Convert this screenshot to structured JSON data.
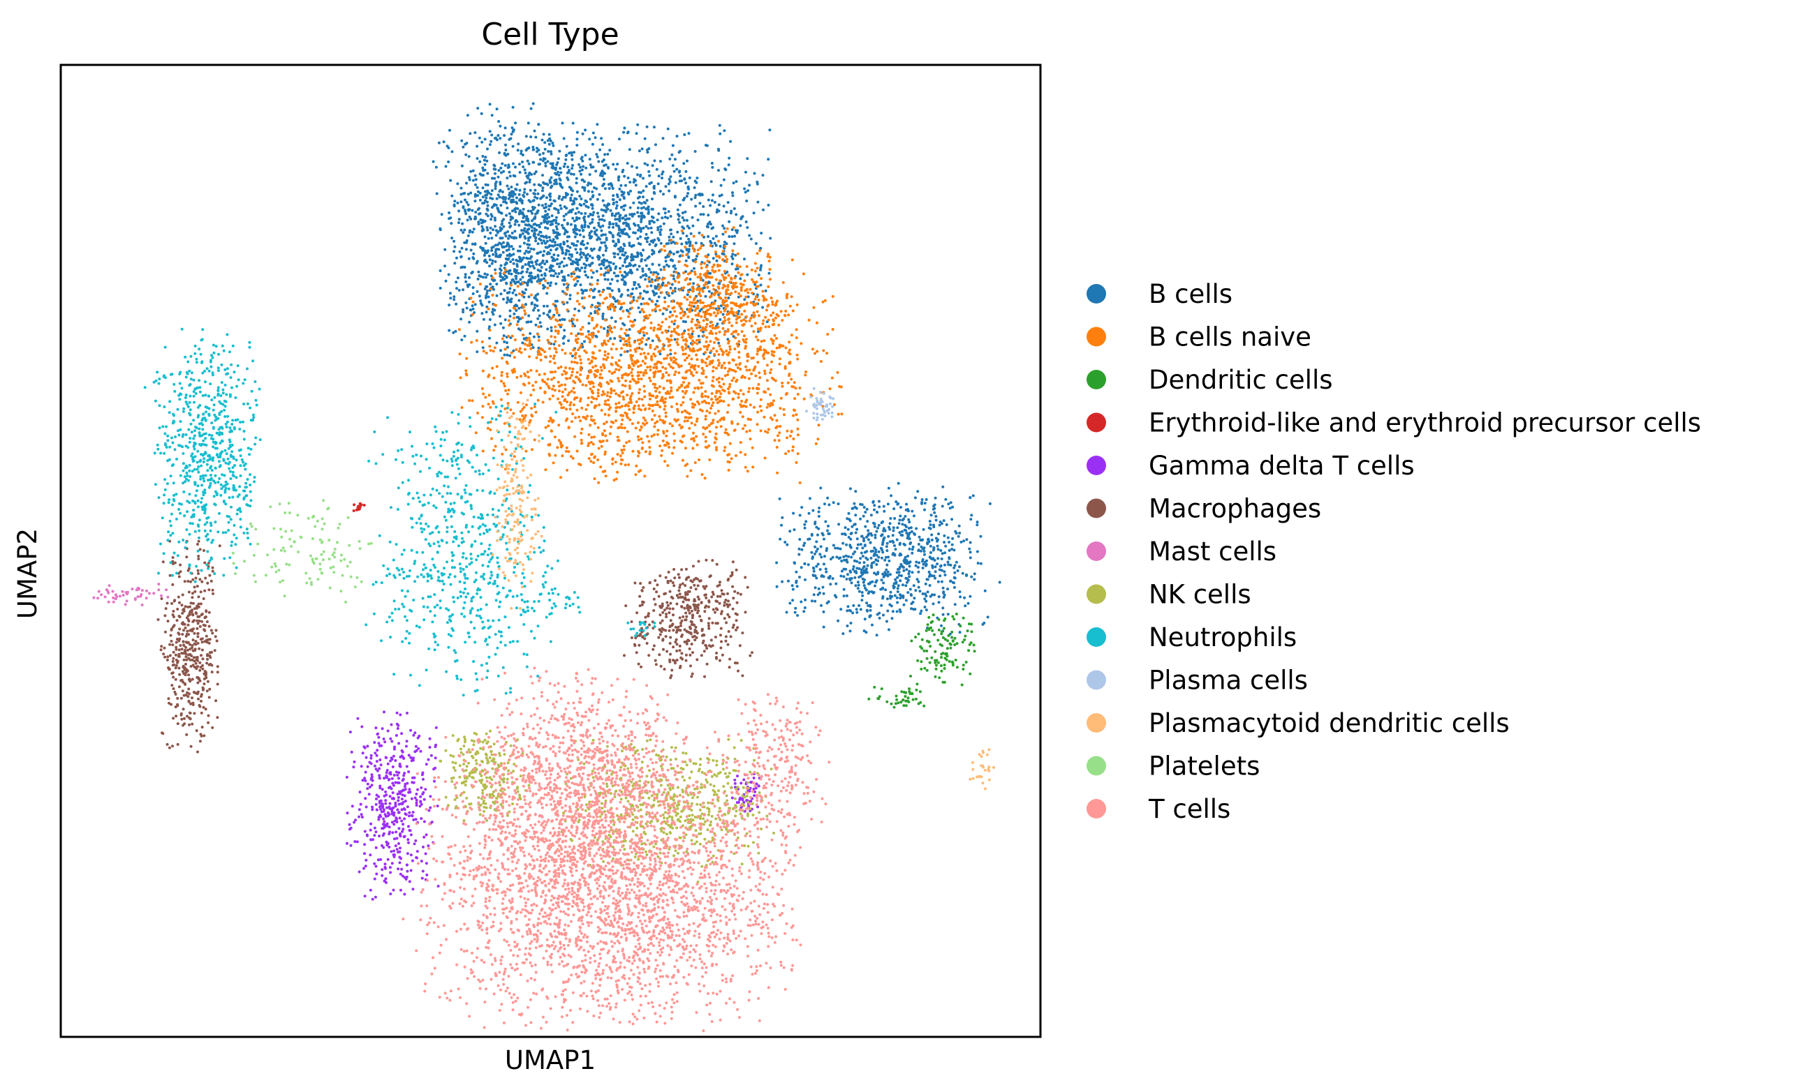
{
  "chart_data": {
    "type": "scatter",
    "title": "Cell Type",
    "xlabel": "UMAP1",
    "ylabel": "UMAP2",
    "xlim": [
      0,
      100
    ],
    "ylim": [
      0,
      100
    ],
    "grid": false,
    "ticks": "none",
    "legend_position": "right",
    "series": [
      {
        "name": "B cells",
        "color": "#1f77b4",
        "clusters": [
          {
            "x": 56,
            "y": 82,
            "sx": 7.5,
            "sy": 5.5,
            "n": 1800
          },
          {
            "x": 46,
            "y": 83,
            "sx": 3.5,
            "sy": 6,
            "n": 700
          },
          {
            "x": 84,
            "y": 49,
            "sx": 5,
            "sy": 3.5,
            "n": 800
          }
        ]
      },
      {
        "name": "B cells naive",
        "color": "#ff7f0e",
        "clusters": [
          {
            "x": 60,
            "y": 68,
            "sx": 9,
            "sy": 5,
            "n": 1700
          },
          {
            "x": 67,
            "y": 76,
            "sx": 3.5,
            "sy": 3.5,
            "n": 400
          }
        ]
      },
      {
        "name": "Dendritic cells",
        "color": "#2ca02c",
        "clusters": [
          {
            "x": 90,
            "y": 40,
            "sx": 1.6,
            "sy": 1.8,
            "n": 110
          },
          {
            "x": 86,
            "y": 35,
            "sx": 1.6,
            "sy": 0.6,
            "n": 40
          }
        ]
      },
      {
        "name": "Erythroid-like and erythroid precursor cells",
        "color": "#d62728",
        "clusters": [
          {
            "x": 30.3,
            "y": 54.5,
            "sx": 0.35,
            "sy": 0.3,
            "n": 14
          }
        ]
      },
      {
        "name": "Gamma delta T cells",
        "color": "#9b30f5",
        "clusters": [
          {
            "x": 34,
            "y": 24,
            "sx": 2.2,
            "sy": 4.5,
            "n": 450
          },
          {
            "x": 70,
            "y": 25,
            "sx": 0.8,
            "sy": 1.2,
            "n": 60
          }
        ]
      },
      {
        "name": "Macrophages",
        "color": "#8c564b",
        "clusters": [
          {
            "x": 13,
            "y": 40,
            "sx": 1.4,
            "sy": 5,
            "n": 420
          },
          {
            "x": 64,
            "y": 43,
            "sx": 3,
            "sy": 2.8,
            "n": 400
          }
        ]
      },
      {
        "name": "Mast cells",
        "color": "#e377c2",
        "clusters": [
          {
            "x": 7,
            "y": 45.5,
            "sx": 2,
            "sy": 0.5,
            "n": 45
          }
        ]
      },
      {
        "name": "NK cells",
        "color": "#b5bd4d",
        "clusters": [
          {
            "x": 62,
            "y": 24,
            "sx": 5,
            "sy": 3,
            "n": 550
          },
          {
            "x": 43,
            "y": 27,
            "sx": 2.2,
            "sy": 2.2,
            "n": 220
          }
        ]
      },
      {
        "name": "Neutrophils",
        "color": "#17becf",
        "clusters": [
          {
            "x": 15,
            "y": 60,
            "sx": 2.5,
            "sy": 6,
            "n": 650
          },
          {
            "x": 41,
            "y": 50,
            "sx": 4.5,
            "sy": 7,
            "n": 600
          },
          {
            "x": 50,
            "y": 45,
            "sx": 2,
            "sy": 1,
            "n": 30
          },
          {
            "x": 59,
            "y": 42,
            "sx": 1,
            "sy": 0.5,
            "n": 15
          }
        ]
      },
      {
        "name": "Plasma cells",
        "color": "#aec7e8",
        "clusters": [
          {
            "x": 77.5,
            "y": 65,
            "sx": 0.7,
            "sy": 0.8,
            "n": 45
          }
        ]
      },
      {
        "name": "Plasmacytoid dendritic cells",
        "color": "#ffbb78",
        "clusters": [
          {
            "x": 46.5,
            "y": 55,
            "sx": 1.2,
            "sy": 5,
            "n": 170
          },
          {
            "x": 94,
            "y": 27.5,
            "sx": 0.6,
            "sy": 1,
            "n": 25
          }
        ]
      },
      {
        "name": "Platelets",
        "color": "#98df8a",
        "clusters": [
          {
            "x": 25,
            "y": 50,
            "sx": 3.5,
            "sy": 2.5,
            "n": 110
          }
        ]
      },
      {
        "name": "T cells",
        "color": "#ff9896",
        "clusters": [
          {
            "x": 56,
            "y": 16,
            "sx": 9,
            "sy": 7,
            "n": 2800
          },
          {
            "x": 53,
            "y": 27,
            "sx": 5,
            "sy": 5,
            "n": 800
          },
          {
            "x": 73,
            "y": 28,
            "sx": 2.5,
            "sy": 4,
            "n": 200
          }
        ]
      }
    ]
  }
}
